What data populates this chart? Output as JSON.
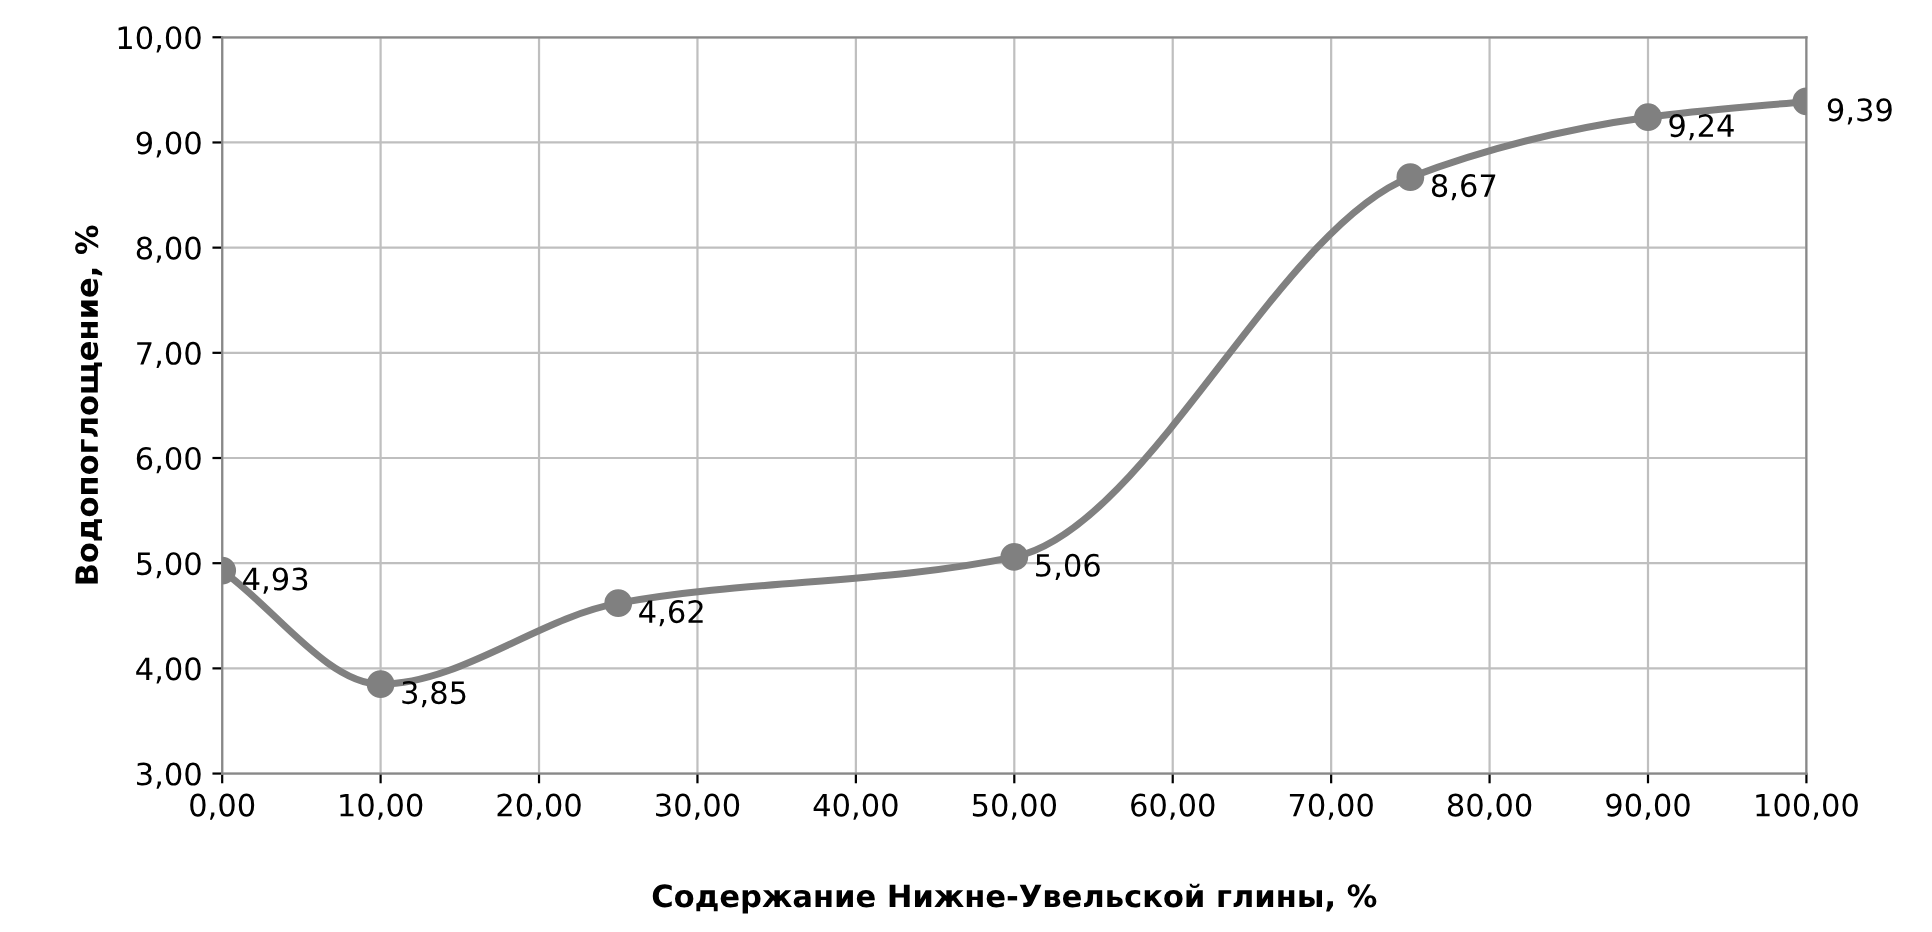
{
  "chart_data": {
    "type": "line",
    "xlabel": "Содержание Нижне-Увельской глины, %",
    "ylabel": "Водопоглощение, %",
    "x": [
      0,
      10,
      25,
      50,
      75,
      90,
      100
    ],
    "series": [
      {
        "color": "#808080",
        "values": [
          4.93,
          3.85,
          4.62,
          5.06,
          8.67,
          9.24,
          9.39
        ],
        "value_labels": [
          "4,93",
          "3,85",
          "4,62",
          "5,06",
          "8,67",
          "9,24",
          "9,39"
        ]
      }
    ],
    "xlim": [
      0,
      100
    ],
    "ylim": [
      3,
      10
    ],
    "xticks": [
      {
        "value": 0,
        "label": "0,00"
      },
      {
        "value": 10,
        "label": "10,00"
      },
      {
        "value": 20,
        "label": "20,00"
      },
      {
        "value": 30,
        "label": "30,00"
      },
      {
        "value": 40,
        "label": "40,00"
      },
      {
        "value": 50,
        "label": "50,00"
      },
      {
        "value": 60,
        "label": "60,00"
      },
      {
        "value": 70,
        "label": "70,00"
      },
      {
        "value": 80,
        "label": "80,00"
      },
      {
        "value": 90,
        "label": "90,00"
      },
      {
        "value": 100,
        "label": "100,00"
      }
    ],
    "yticks": [
      {
        "value": 3,
        "label": "3,00"
      },
      {
        "value": 4,
        "label": "4,00"
      },
      {
        "value": 5,
        "label": "5,00"
      },
      {
        "value": 6,
        "label": "6,00"
      },
      {
        "value": 7,
        "label": "7,00"
      },
      {
        "value": 8,
        "label": "8,00"
      },
      {
        "value": 9,
        "label": "9,00"
      },
      {
        "value": 10,
        "label": "10,00"
      }
    ],
    "grid": true,
    "marker": "circle",
    "line_style": "solid"
  }
}
